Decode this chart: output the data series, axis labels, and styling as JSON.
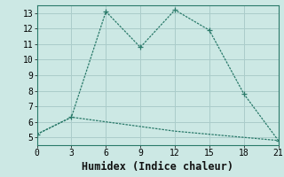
{
  "xlabel": "Humidex (Indice chaleur)",
  "line1_x": [
    0,
    3,
    6,
    9,
    12,
    15,
    18,
    21
  ],
  "line1_y": [
    5.2,
    6.3,
    13.1,
    10.8,
    13.2,
    11.9,
    7.8,
    4.8
  ],
  "line2_x": [
    0,
    3,
    6,
    9,
    12,
    15,
    18,
    21
  ],
  "line2_y": [
    5.2,
    6.3,
    6.0,
    5.7,
    5.4,
    5.2,
    5.0,
    4.8
  ],
  "line_color": "#2a7a6a",
  "bg_color": "#cce8e4",
  "grid_color": "#aaccca",
  "xlim": [
    0,
    21
  ],
  "ylim": [
    4.5,
    13.5
  ],
  "xticks": [
    0,
    3,
    6,
    9,
    12,
    15,
    18,
    21
  ],
  "yticks": [
    5,
    6,
    7,
    8,
    9,
    10,
    11,
    12,
    13
  ],
  "tick_fontsize": 7,
  "xlabel_fontsize": 8.5
}
